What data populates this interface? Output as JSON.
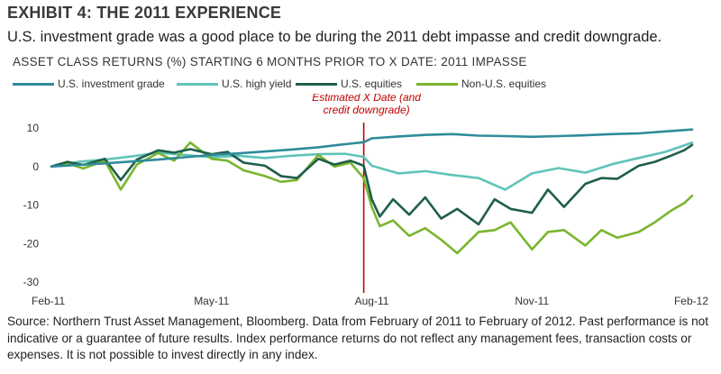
{
  "header": {
    "exhibit_title": "EXHIBIT 4: THE 2011 EXPERIENCE",
    "subtitle": "U.S. investment grade was a good place to be during the 2011 debt impasse and credit downgrade."
  },
  "footer": {
    "source": "Source: Northern Trust Asset Management, Bloomberg. Data from February of 2011 to February of 2012. Past performance is not indicative or a guarantee of future results. Index performance returns do not reflect any management fees, transaction costs or expenses. It is not possible to invest directly in any index."
  },
  "chart_data": {
    "type": "line",
    "title": "ASSET CLASS RETURNS (%) STARTING 6 MONTHS PRIOR TO X DATE: 2011 IMPASSE",
    "xlabel": "",
    "ylabel": "",
    "x_tick_labels": [
      "Feb-11",
      "May-11",
      "Aug-11",
      "Nov-11",
      "Feb-12"
    ],
    "x_range": [
      0,
      12
    ],
    "x_tick_positions": [
      0,
      3,
      6,
      9,
      12
    ],
    "y_ticks": [
      10,
      0,
      -10,
      -20,
      -30
    ],
    "ylim": [
      -30,
      10
    ],
    "grid": false,
    "legend_position": "top",
    "annotation": {
      "label_lines": [
        "Estimated X Date (and",
        "credit downgrade)"
      ],
      "x": 5.85,
      "color": "#c00000"
    },
    "series": [
      {
        "name": "U.S. investment grade",
        "color": "#2e8b9a",
        "x": [
          0,
          0.5,
          1.0,
          1.5,
          2.0,
          2.5,
          3.0,
          3.5,
          4.0,
          4.5,
          5.0,
          5.5,
          5.85,
          6.0,
          6.5,
          7.0,
          7.5,
          8.0,
          8.5,
          9.0,
          9.5,
          10.0,
          10.5,
          11.0,
          11.5,
          12.0
        ],
        "values": [
          0,
          0.4,
          0.8,
          1.3,
          1.8,
          2.4,
          3.0,
          3.4,
          3.9,
          4.4,
          5.0,
          5.8,
          6.3,
          7.3,
          7.8,
          8.2,
          8.4,
          8.0,
          7.9,
          7.7,
          7.9,
          8.1,
          8.4,
          8.6,
          9.1,
          9.6
        ]
      },
      {
        "name": "U.S. high yield",
        "color": "#5fc4b8",
        "x": [
          0,
          0.5,
          1.0,
          1.5,
          2.0,
          2.5,
          3.0,
          3.5,
          4.0,
          4.5,
          5.0,
          5.5,
          5.85,
          6.0,
          6.5,
          7.0,
          7.5,
          8.0,
          8.5,
          9.0,
          9.5,
          10.0,
          10.5,
          11.0,
          11.5,
          12.0
        ],
        "values": [
          0,
          1.2,
          1.8,
          2.6,
          3.6,
          3.0,
          2.4,
          2.8,
          2.2,
          2.8,
          3.2,
          3.3,
          2.5,
          0.2,
          -1.8,
          -1.2,
          -2.2,
          -3.0,
          -6.0,
          -1.8,
          -0.4,
          -1.6,
          0.6,
          2.2,
          3.8,
          6.2
        ]
      },
      {
        "name": "U.S. equities",
        "color": "#1f5e4a",
        "x": [
          0,
          0.3,
          0.6,
          1.0,
          1.3,
          1.6,
          2.0,
          2.3,
          2.6,
          3.0,
          3.3,
          3.6,
          4.0,
          4.3,
          4.6,
          5.0,
          5.3,
          5.6,
          5.85,
          6.0,
          6.15,
          6.4,
          6.7,
          7.0,
          7.3,
          7.6,
          8.0,
          8.3,
          8.6,
          9.0,
          9.3,
          9.6,
          10.0,
          10.3,
          10.6,
          11.0,
          11.3,
          11.6,
          11.85,
          12.0
        ],
        "values": [
          0,
          1.2,
          0.4,
          2.0,
          -3.5,
          1.8,
          4.2,
          3.6,
          4.5,
          3.2,
          3.8,
          1.0,
          0.2,
          -2.5,
          -3.0,
          2.0,
          0.5,
          1.5,
          0.2,
          -8.5,
          -13.0,
          -8.5,
          -12.5,
          -8.0,
          -13.5,
          -11.0,
          -15.0,
          -8.5,
          -11.0,
          -12.0,
          -6.0,
          -10.5,
          -4.5,
          -3.0,
          -3.2,
          0.2,
          1.2,
          2.8,
          4.2,
          5.6
        ]
      },
      {
        "name": "Non-U.S. equities",
        "color": "#7ab52e",
        "x": [
          0,
          0.3,
          0.6,
          1.0,
          1.3,
          1.6,
          2.0,
          2.3,
          2.6,
          3.0,
          3.3,
          3.6,
          4.0,
          4.3,
          4.6,
          5.0,
          5.3,
          5.6,
          5.85,
          6.0,
          6.15,
          6.4,
          6.7,
          7.0,
          7.3,
          7.6,
          8.0,
          8.3,
          8.6,
          9.0,
          9.3,
          9.6,
          10.0,
          10.3,
          10.6,
          11.0,
          11.3,
          11.6,
          11.85,
          12.0
        ],
        "values": [
          0,
          0.8,
          -0.5,
          1.5,
          -6.0,
          0.5,
          3.5,
          1.5,
          6.2,
          2.0,
          1.5,
          -1.0,
          -2.5,
          -4.0,
          -3.5,
          3.0,
          0.0,
          1.0,
          -3.0,
          -10.5,
          -15.5,
          -14.0,
          -18.0,
          -16.0,
          -19.0,
          -22.5,
          -17.0,
          -16.5,
          -14.5,
          -21.5,
          -17.0,
          -16.5,
          -20.5,
          -16.5,
          -18.5,
          -17.0,
          -14.5,
          -11.5,
          -9.5,
          -7.6
        ]
      }
    ]
  }
}
